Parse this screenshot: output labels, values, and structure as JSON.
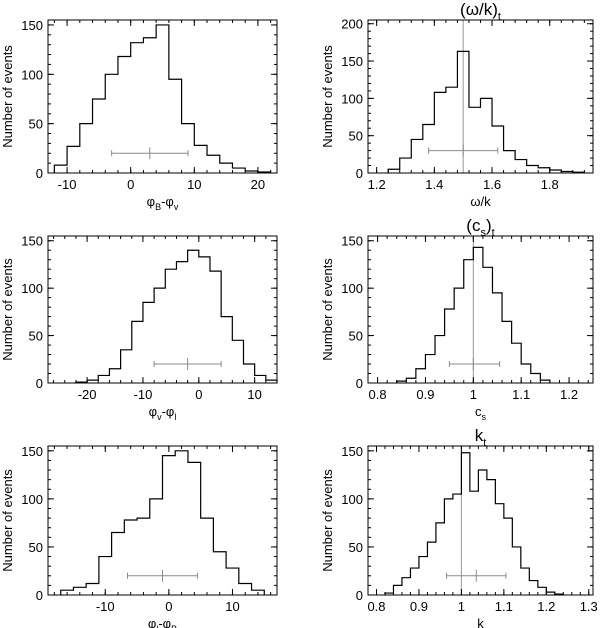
{
  "ylabel_text": "Number of events",
  "chart_data": [
    {
      "type": "histogram",
      "title": "",
      "xlabel": "φB-φv",
      "xlabel_main": "φ",
      "xlabel_sub1": "B",
      "xlabel_mid": "-φ",
      "xlabel_sub2": "v",
      "xlim": [
        -13,
        23
      ],
      "ylim": [
        0,
        155
      ],
      "xticks": [
        -10,
        0,
        10,
        20
      ],
      "yticks": [
        0,
        50,
        100,
        150
      ],
      "bins": [
        -12,
        -10,
        -8,
        -6,
        -4,
        -2,
        0,
        2,
        4,
        6,
        8,
        10,
        12,
        14,
        16,
        18,
        20,
        22
      ],
      "counts": [
        8,
        27,
        50,
        75,
        100,
        118,
        132,
        137,
        150,
        95,
        50,
        28,
        18,
        10,
        5,
        2,
        1
      ],
      "vline": null,
      "errbar": {
        "center": 3,
        "low": -3,
        "high": 9,
        "y": 20
      }
    },
    {
      "type": "histogram",
      "title": "(ω/k)t",
      "title_main": "(ω/k)",
      "title_sub": "t",
      "xlabel": "ω/k",
      "xlabel_main": "ω/k",
      "xlabel_sub1": "",
      "xlabel_mid": "",
      "xlabel_sub2": "",
      "xlim": [
        1.17,
        1.95
      ],
      "ylim": [
        0,
        205
      ],
      "xticks": [
        1.2,
        1.4,
        1.6,
        1.8
      ],
      "yticks": [
        0,
        50,
        100,
        150,
        200
      ],
      "bins": [
        1.24,
        1.28,
        1.32,
        1.36,
        1.4,
        1.44,
        1.48,
        1.52,
        1.56,
        1.6,
        1.64,
        1.68,
        1.72,
        1.76,
        1.8,
        1.84,
        1.88,
        1.92
      ],
      "counts": [
        5,
        20,
        45,
        65,
        108,
        115,
        163,
        88,
        100,
        63,
        30,
        18,
        10,
        7,
        4,
        2,
        1
      ],
      "vline": 1.5,
      "errbar": {
        "center": 1.5,
        "low": 1.38,
        "high": 1.62,
        "y": 30
      }
    },
    {
      "type": "histogram",
      "title": "",
      "xlabel": "φv-φl",
      "xlabel_main": "φ",
      "xlabel_sub1": "v",
      "xlabel_mid": "-φ",
      "xlabel_sub2": "l",
      "xlim": [
        -27,
        14
      ],
      "ylim": [
        0,
        155
      ],
      "xticks": [
        -20,
        -10,
        0,
        10
      ],
      "yticks": [
        0,
        50,
        100,
        150
      ],
      "bins": [
        -22,
        -20,
        -18,
        -16,
        -14,
        -12,
        -10,
        -8,
        -6,
        -4,
        -2,
        0,
        2,
        4,
        6,
        8,
        10,
        12,
        14
      ],
      "counts": [
        1,
        3,
        8,
        15,
        35,
        65,
        85,
        100,
        120,
        128,
        140,
        133,
        118,
        70,
        45,
        20,
        8,
        3
      ],
      "vline": null,
      "errbar": {
        "center": -2,
        "low": -8,
        "high": 4,
        "y": 20
      }
    },
    {
      "type": "histogram",
      "title": "(cs)t",
      "title_main": "(c",
      "title_sub": "s",
      "title_end": ")",
      "title_sub2": "t",
      "xlabel": "cs",
      "xlabel_main": "c",
      "xlabel_sub1": "s",
      "xlabel_mid": "",
      "xlabel_sub2": "",
      "xlim": [
        0.78,
        1.25
      ],
      "ylim": [
        0,
        155
      ],
      "xticks": [
        0.8,
        0.9,
        1.0,
        1.1,
        1.2
      ],
      "yticks": [
        0,
        50,
        100,
        150
      ],
      "bins": [
        0.84,
        0.86,
        0.88,
        0.9,
        0.92,
        0.94,
        0.96,
        0.98,
        1.0,
        1.02,
        1.04,
        1.06,
        1.08,
        1.1,
        1.12,
        1.14,
        1.16
      ],
      "counts": [
        2,
        5,
        15,
        30,
        50,
        78,
        100,
        130,
        143,
        122,
        95,
        65,
        42,
        20,
        10,
        3
      ],
      "vline": 1.0,
      "errbar": {
        "center": 1.0,
        "low": 0.95,
        "high": 1.055,
        "y": 20
      }
    },
    {
      "type": "histogram",
      "title": "",
      "xlabel": "φl-φB",
      "xlabel_main": "φ",
      "xlabel_sub1": "l",
      "xlabel_mid": "-φ",
      "xlabel_sub2": "B",
      "xlim": [
        -19,
        17
      ],
      "ylim": [
        0,
        155
      ],
      "xticks": [
        -10,
        0,
        10
      ],
      "yticks": [
        0,
        50,
        100,
        150
      ],
      "bins": [
        -17,
        -15,
        -13,
        -11,
        -9,
        -7,
        -5,
        -3,
        -1,
        1,
        3,
        5,
        7,
        9,
        11,
        13,
        15
      ],
      "counts": [
        5,
        8,
        12,
        40,
        65,
        78,
        80,
        100,
        145,
        150,
        138,
        80,
        45,
        28,
        12,
        5
      ],
      "vline": null,
      "errbar": {
        "center": -1,
        "low": -6.5,
        "high": 4.5,
        "y": 20
      }
    },
    {
      "type": "histogram",
      "title": "kt",
      "title_main": "k",
      "title_sub": "t",
      "xlabel": "k",
      "xlabel_main": "k",
      "xlabel_sub1": "",
      "xlabel_mid": "",
      "xlabel_sub2": "",
      "xlim": [
        0.78,
        1.31
      ],
      "ylim": [
        0,
        155
      ],
      "xticks": [
        0.8,
        0.9,
        1.0,
        1.1,
        1.2,
        1.3
      ],
      "yticks": [
        0,
        50,
        100,
        150
      ],
      "bins": [
        0.82,
        0.84,
        0.86,
        0.88,
        0.9,
        0.92,
        0.94,
        0.96,
        0.98,
        1.0,
        1.02,
        1.04,
        1.06,
        1.08,
        1.1,
        1.12,
        1.14,
        1.16,
        1.18,
        1.2,
        1.22,
        1.24
      ],
      "counts": [
        2,
        10,
        18,
        28,
        40,
        55,
        75,
        100,
        105,
        148,
        108,
        130,
        120,
        95,
        80,
        50,
        28,
        15,
        8,
        3,
        1
      ],
      "vline": 1.0,
      "errbar": {
        "center": 1.035,
        "low": 0.965,
        "high": 1.105,
        "y": 20
      }
    }
  ]
}
